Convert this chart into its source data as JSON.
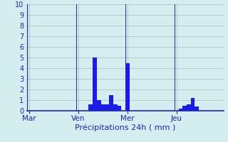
{
  "title": "Précipitations 24h ( mm )",
  "background_color": "#d4eef0",
  "bar_color": "#1a1aee",
  "grid_color": "#aabbbb",
  "ylim": [
    0,
    10
  ],
  "yticks": [
    0,
    1,
    2,
    3,
    4,
    5,
    6,
    7,
    8,
    9,
    10
  ],
  "day_labels": [
    "Mar",
    "Ven",
    "Mer",
    "Jeu"
  ],
  "n_bars": 48,
  "bar_values": [
    0,
    0,
    0,
    0,
    0,
    0,
    0,
    0,
    0,
    0,
    0,
    0,
    0,
    0,
    0,
    0.6,
    5.0,
    1.0,
    0.6,
    0.6,
    1.5,
    0.6,
    0.5,
    0,
    4.5,
    0,
    0,
    0,
    0,
    0,
    0,
    0,
    0,
    0,
    0,
    0,
    0,
    0.2,
    0.5,
    0.6,
    1.2,
    0.4,
    0,
    0,
    0,
    0,
    0,
    0
  ],
  "tick_color": "#2222bb",
  "axis_color": "#2222bb",
  "ytick_fontsize": 7,
  "xtick_fontsize": 7.5,
  "xlabel_fontsize": 8
}
